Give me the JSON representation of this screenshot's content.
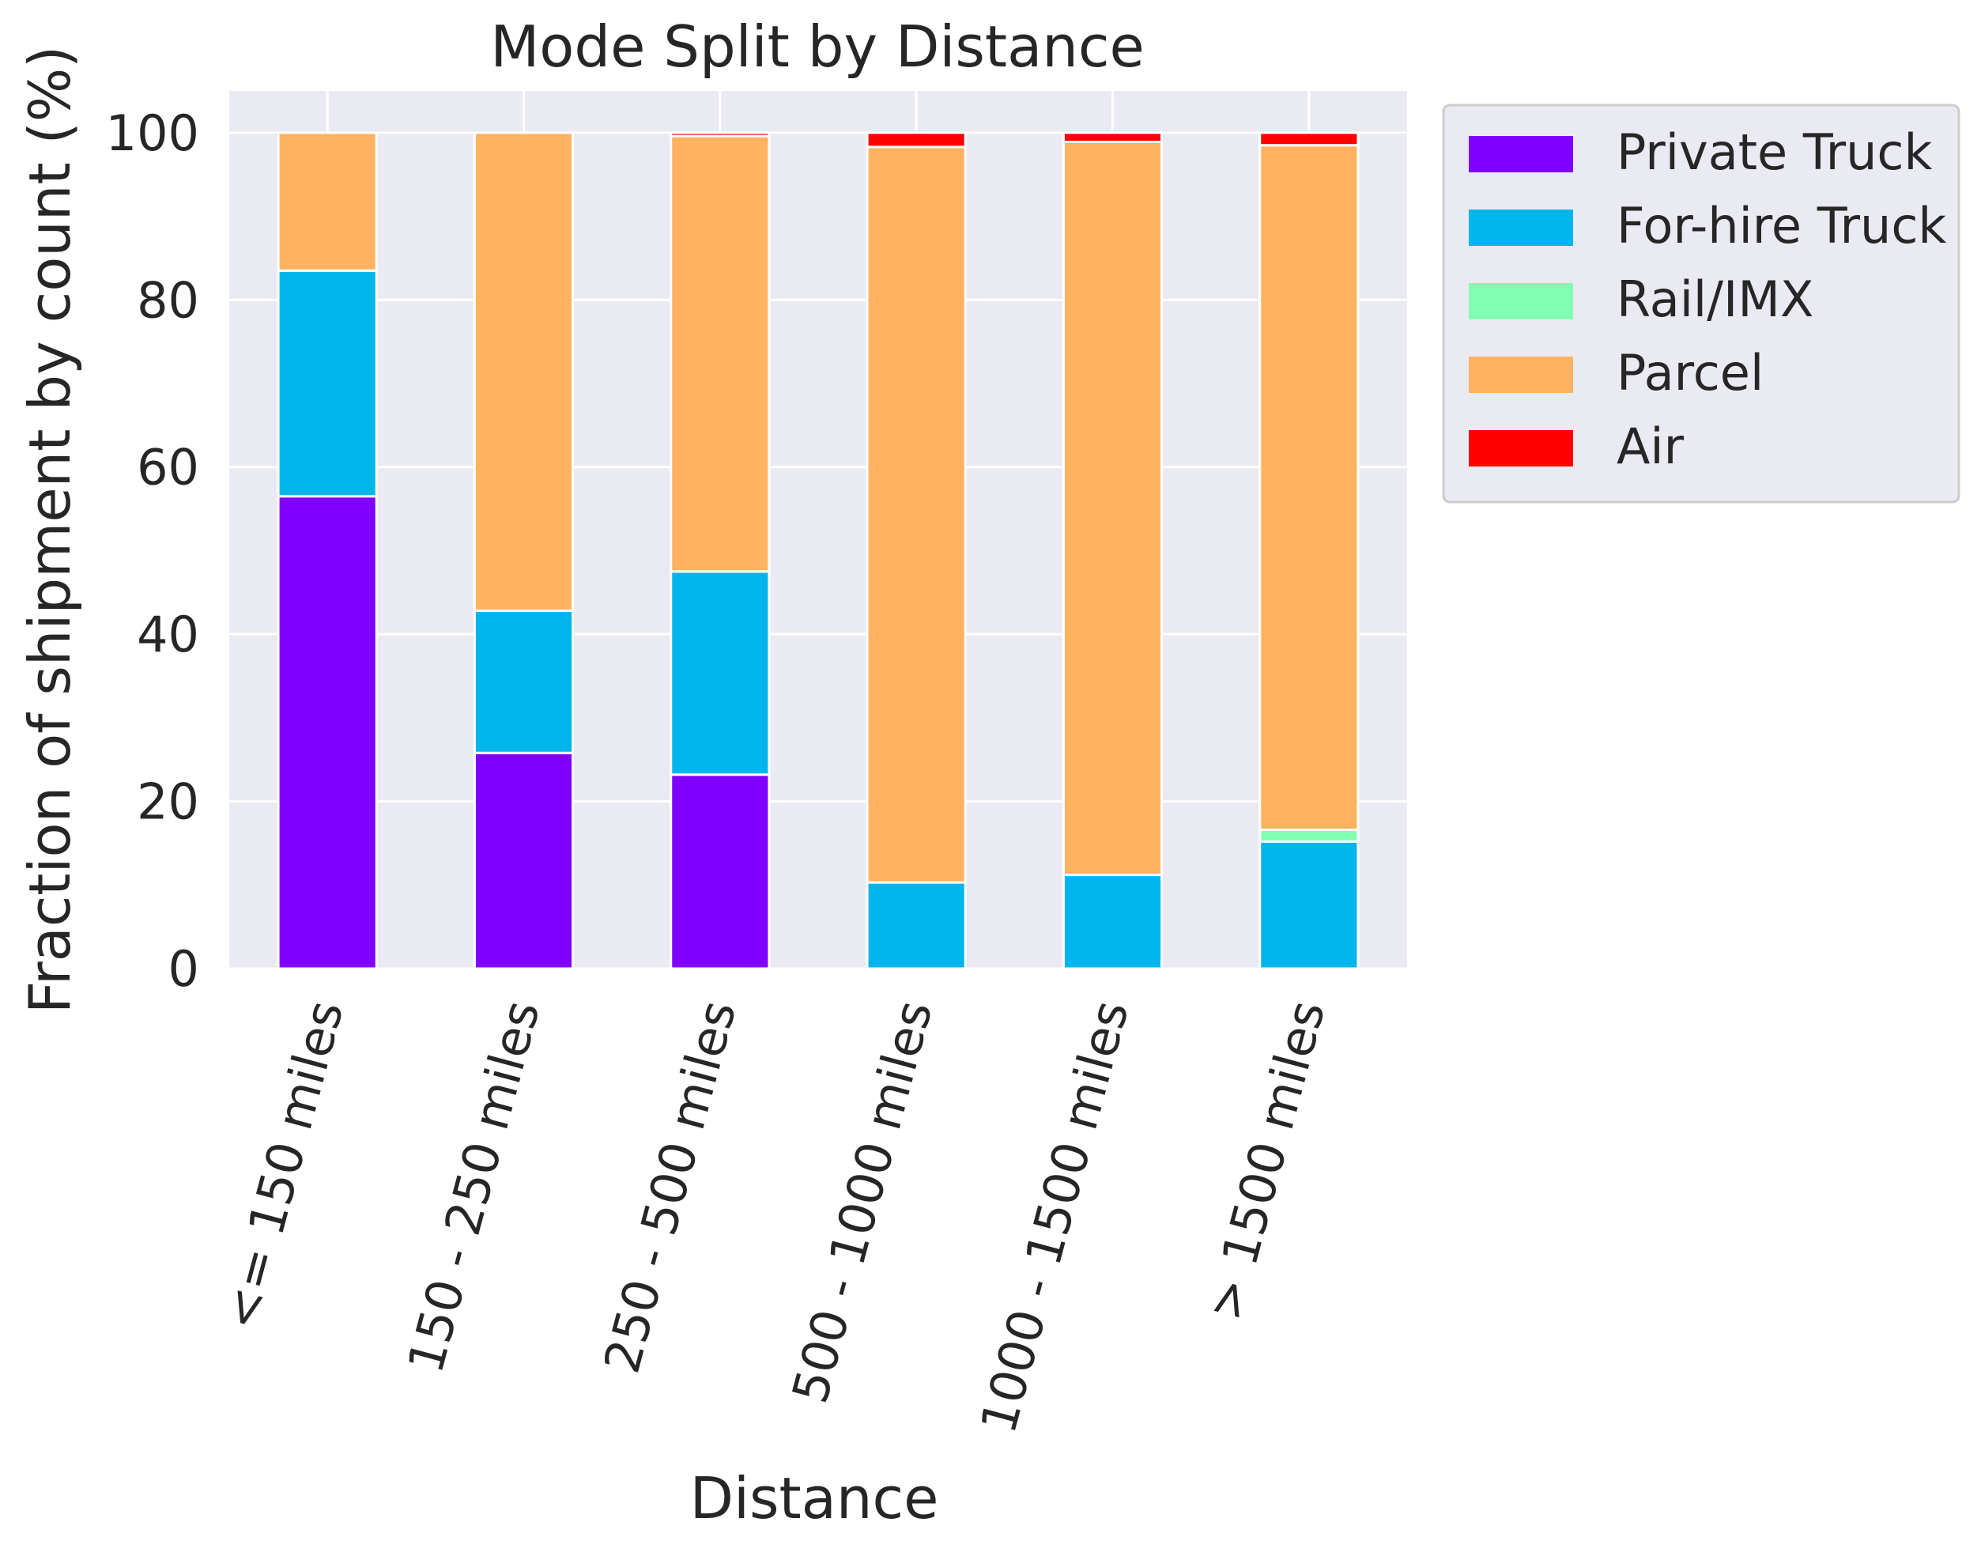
{
  "chart_data": {
    "type": "bar",
    "stacked": true,
    "title": "Mode Split by Distance",
    "xlabel": "Distance",
    "ylabel": "Fraction of shipment by count (%)",
    "ylim": [
      0,
      105
    ],
    "yticks": [
      0,
      20,
      40,
      60,
      80,
      100
    ],
    "grid": true,
    "legend_position": "outside-top-right",
    "categories": [
      "<= 150 miles",
      "150 - 250 miles",
      "250 - 500 miles",
      "500 - 1000 miles",
      "1000 - 1500 miles",
      "> 1500 miles"
    ],
    "series": [
      {
        "name": "Private Truck",
        "color": "#8000ff",
        "values": [
          56.5,
          25.8,
          23.2,
          0,
          0,
          0
        ]
      },
      {
        "name": "For-hire Truck",
        "color": "#00b5eb",
        "values": [
          27.0,
          17.0,
          24.3,
          10.3,
          11.2,
          15.2
        ]
      },
      {
        "name": "Rail/IMX",
        "color": "#80ffb4",
        "values": [
          0,
          0,
          0,
          0,
          0,
          1.4
        ]
      },
      {
        "name": "Parcel",
        "color": "#ffb360",
        "values": [
          16.5,
          57.2,
          52.1,
          88.0,
          87.7,
          81.9
        ]
      },
      {
        "name": "Air",
        "color": "#ff0000",
        "values": [
          0,
          0,
          0.4,
          1.7,
          1.1,
          1.5
        ]
      }
    ],
    "background": "#eaeaf2",
    "grid_color": "#ffffff"
  }
}
